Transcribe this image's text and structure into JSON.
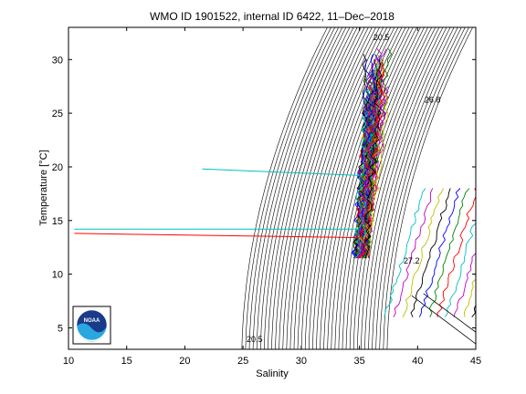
{
  "chart_data": {
    "type": "line",
    "title": "WMO ID 1901522, internal ID 6422, 11–Dec–2018",
    "xlabel": "Salinity",
    "ylabel": "Temperature [°C]",
    "xlim": [
      10,
      45
    ],
    "ylim": [
      3,
      33
    ],
    "xticks": [
      "10",
      "15",
      "20",
      "25",
      "30",
      "35",
      "40",
      "45"
    ],
    "yticks": [
      "5",
      "10",
      "15",
      "20",
      "25",
      "30"
    ],
    "grid": false,
    "isopycnal_labels": [
      "20.5",
      "20.5",
      "26.8",
      "27.2"
    ],
    "logo": {
      "text": "NOAA",
      "colors": [
        "#1a3a8a",
        "#2aa7e0"
      ]
    },
    "series_colors": [
      "#0000ff",
      "#008000",
      "#ff0000",
      "#00bfbf",
      "#bf00bf",
      "#bfbf00",
      "#000000"
    ],
    "outlier_profiles": [
      {
        "color": "#00bfbf",
        "points": [
          [
            21.5,
            19.8
          ],
          [
            35.0,
            19.2
          ]
        ]
      },
      {
        "color": "#00bfbf",
        "points": [
          [
            10.5,
            14.2
          ],
          [
            35.0,
            14.2
          ]
        ]
      },
      {
        "color": "#ff0000",
        "points": [
          [
            10.5,
            13.8
          ],
          [
            35.0,
            13.4
          ]
        ]
      }
    ]
  }
}
